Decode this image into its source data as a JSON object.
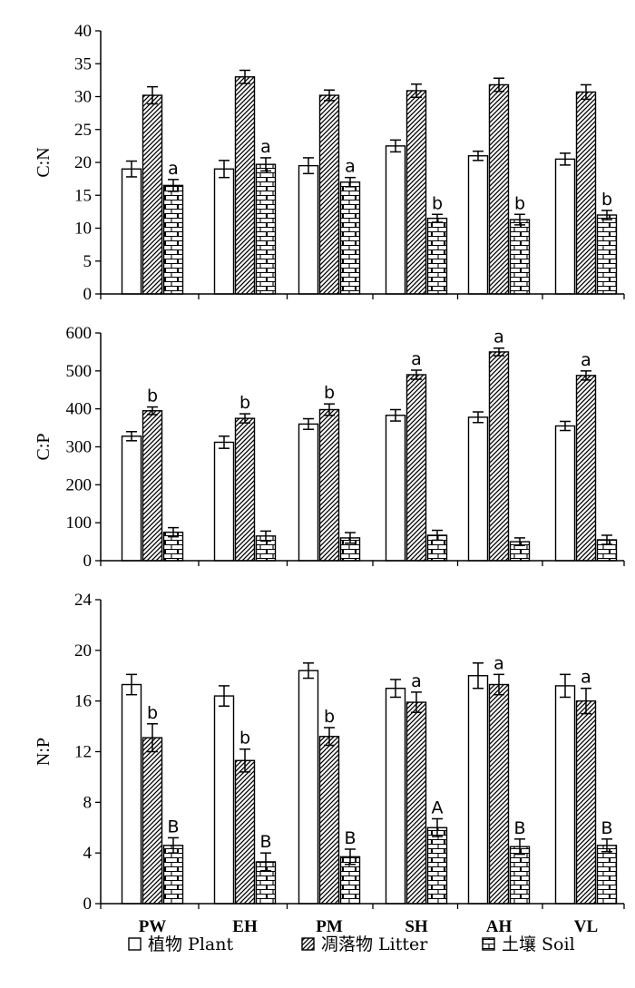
{
  "chart_data": [
    {
      "type": "bar",
      "title": "",
      "ylabel": "C:N",
      "xlabel": "",
      "ylim": [
        0,
        40
      ],
      "yticks": [
        0,
        5,
        10,
        15,
        20,
        25,
        30,
        35,
        40
      ],
      "categories": [
        "PW",
        "EH",
        "PM",
        "SH",
        "AH",
        "VL"
      ],
      "show_category_labels": false,
      "series": [
        {
          "name": "植物 Plant",
          "pattern": "plain",
          "values": [
            19,
            19,
            19.5,
            22.5,
            21,
            20.5
          ],
          "errors": [
            1.2,
            1.3,
            1.2,
            0.9,
            0.7,
            0.9
          ],
          "letters": [
            "",
            "",
            "",
            "",
            "",
            ""
          ]
        },
        {
          "name": "凋落物 Litter",
          "pattern": "hatch",
          "values": [
            30.2,
            33,
            30.2,
            30.9,
            31.8,
            30.7
          ],
          "errors": [
            1.3,
            1.0,
            0.8,
            1.0,
            1.0,
            1.1
          ],
          "letters": [
            "",
            "",
            "",
            "",
            "",
            ""
          ]
        },
        {
          "name": "土壤 Soil",
          "pattern": "brick",
          "values": [
            16.5,
            19.7,
            17,
            11.5,
            11.3,
            12
          ],
          "errors": [
            0.9,
            1.0,
            0.7,
            0.6,
            0.8,
            0.7
          ],
          "letters": [
            "a",
            "a",
            "a",
            "b",
            "b",
            "b"
          ]
        }
      ]
    },
    {
      "type": "bar",
      "title": "",
      "ylabel": "C:P",
      "xlabel": "",
      "ylim": [
        0,
        600
      ],
      "yticks": [
        0,
        100,
        200,
        300,
        400,
        500,
        600
      ],
      "categories": [
        "PW",
        "EH",
        "PM",
        "SH",
        "AH",
        "VL"
      ],
      "show_category_labels": false,
      "series": [
        {
          "name": "植物 Plant",
          "pattern": "plain",
          "values": [
            328,
            312,
            360,
            383,
            378,
            355
          ],
          "errors": [
            12,
            16,
            14,
            15,
            14,
            12
          ],
          "letters": [
            "",
            "",
            "",
            "",
            "",
            ""
          ]
        },
        {
          "name": "凋落物 Litter",
          "pattern": "hatch",
          "values": [
            395,
            375,
            398,
            490,
            550,
            488
          ],
          "errors": [
            10,
            12,
            15,
            12,
            10,
            12
          ],
          "letters": [
            "b",
            "b",
            "b",
            "a",
            "a",
            "a"
          ]
        },
        {
          "name": "土壤 Soil",
          "pattern": "brick",
          "values": [
            75,
            65,
            60,
            67,
            50,
            55
          ],
          "errors": [
            12,
            13,
            14,
            13,
            10,
            12
          ],
          "letters": [
            "",
            "",
            "",
            "",
            "",
            ""
          ]
        }
      ]
    },
    {
      "type": "bar",
      "title": "",
      "ylabel": "N:P",
      "xlabel": "",
      "ylim": [
        0,
        24
      ],
      "yticks": [
        0,
        4,
        8,
        12,
        16,
        20,
        24
      ],
      "categories": [
        "PW",
        "EH",
        "PM",
        "SH",
        "AH",
        "VL"
      ],
      "show_category_labels": true,
      "series": [
        {
          "name": "植物 Plant",
          "pattern": "plain",
          "values": [
            17.3,
            16.4,
            18.4,
            17,
            18,
            17.2
          ],
          "errors": [
            0.8,
            0.8,
            0.6,
            0.7,
            1.0,
            0.9
          ],
          "letters": [
            "",
            "",
            "",
            "",
            "",
            ""
          ]
        },
        {
          "name": "凋落物 Litter",
          "pattern": "hatch",
          "values": [
            13.1,
            11.3,
            13.2,
            15.9,
            17.3,
            16
          ],
          "errors": [
            1.1,
            0.9,
            0.7,
            0.8,
            0.8,
            1.0
          ],
          "letters": [
            "b",
            "b",
            "b",
            "a",
            "a",
            "a"
          ]
        },
        {
          "name": "土壤 Soil",
          "pattern": "brick",
          "values": [
            4.6,
            3.3,
            3.7,
            6,
            4.5,
            4.6
          ],
          "errors": [
            0.6,
            0.7,
            0.6,
            0.7,
            0.6,
            0.5
          ],
          "letters": [
            "B",
            "B",
            "B",
            "A",
            "B",
            "B"
          ]
        }
      ]
    }
  ],
  "legend": {
    "position": "bottom",
    "items": [
      {
        "label": "植物 Plant",
        "pattern": "plain"
      },
      {
        "label": "凋落物 Litter",
        "pattern": "hatch"
      },
      {
        "label": "土壤 Soil",
        "pattern": "brick"
      }
    ]
  }
}
